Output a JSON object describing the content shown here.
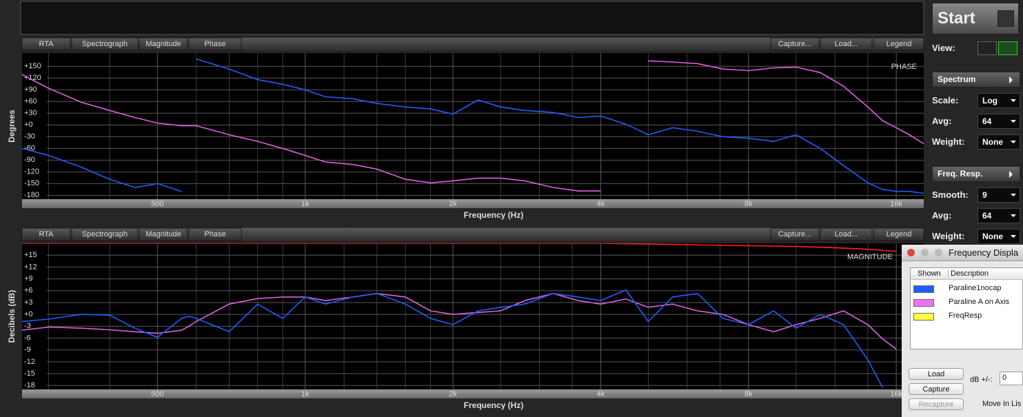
{
  "chart_data": [
    {
      "type": "line",
      "annotation": "PHASE",
      "x_label": "Frequency (Hz)",
      "y_label": "Degrees",
      "log_x": true,
      "grid": true,
      "xlim": [
        265,
        18200
      ],
      "xticks": [
        500,
        {
          "value": 1000,
          "label": "1k"
        },
        {
          "value": 2000,
          "label": "2k"
        },
        {
          "value": 4000,
          "label": "4k"
        },
        {
          "value": 8000,
          "label": "8k"
        },
        {
          "value": 16000,
          "label": "16k"
        }
      ],
      "x_minor_grid": [
        300,
        400,
        600,
        700,
        800,
        900,
        1200,
        1400,
        1600,
        1800,
        2500,
        3000,
        3500,
        5000,
        6000,
        7000,
        10000,
        12000,
        14000
      ],
      "ylim": [
        -190,
        184
      ],
      "yticks": [
        {
          "value": 150,
          "label": "+150"
        },
        {
          "value": 120,
          "label": "+120"
        },
        {
          "value": 90,
          "label": "+90"
        },
        {
          "value": 60,
          "label": "+60"
        },
        {
          "value": 30,
          "label": "+30"
        },
        {
          "value": 0,
          "label": "+0"
        },
        -30,
        -60,
        -90,
        -120,
        -150,
        -180
      ],
      "x": [
        265,
        300,
        350,
        400,
        450,
        500,
        560,
        580,
        600,
        700,
        800,
        900,
        1000,
        1100,
        1250,
        1400,
        1600,
        1800,
        2000,
        2250,
        2500,
        2800,
        3200,
        3600,
        4000,
        4500,
        5000,
        5600,
        6300,
        7100,
        8000,
        9000,
        10000,
        11200,
        12500,
        14000,
        15000,
        16000,
        17000,
        18200
      ],
      "series": [
        {
          "color": "#e060e0",
          "values": [
            129,
            94,
            58,
            37,
            19,
            5,
            -2,
            -2,
            -2,
            -25,
            -42,
            -60,
            -78,
            -95,
            -101,
            -113,
            -139,
            -148,
            -143,
            -136,
            -136,
            -143,
            -160,
            -169,
            -169,
            null,
            164,
            161,
            157,
            143,
            139,
            146,
            148,
            134,
            99,
            46,
            11,
            -7,
            -25,
            -48
          ]
        },
        {
          "color": "#1f5fff",
          "values": [
            -60,
            -78,
            -108,
            -139,
            -160,
            -150,
            -170,
            null,
            169,
            143,
            116,
            104,
            90,
            72,
            67,
            55,
            46,
            41,
            28,
            64,
            46,
            37,
            32,
            19,
            23,
            2,
            -25,
            -7,
            -16,
            -30,
            -34,
            -42,
            -25,
            -60,
            -104,
            -148,
            -165,
            -170,
            -170,
            -175
          ]
        }
      ]
    },
    {
      "type": "line",
      "annotation": "MAGNITUDE",
      "x_label": "Frequency (Hz)",
      "y_label": "Decibels (dB)",
      "log_x": true,
      "grid": true,
      "xlim": [
        265,
        18200
      ],
      "xticks": [
        500,
        {
          "value": 1000,
          "label": "1k"
        },
        {
          "value": 2000,
          "label": "2k"
        },
        {
          "value": 4000,
          "label": "4k"
        },
        {
          "value": 8000,
          "label": "8k"
        },
        {
          "value": 16000,
          "label": "16k"
        }
      ],
      "x_minor_grid": [
        300,
        400,
        600,
        700,
        800,
        900,
        1200,
        1400,
        1600,
        1800,
        2500,
        3000,
        3500,
        5000,
        6000,
        7000,
        10000,
        12000,
        14000
      ],
      "ylim": [
        -19,
        18
      ],
      "yticks": [
        {
          "value": 15,
          "label": "+15"
        },
        {
          "value": 12,
          "label": "+12"
        },
        {
          "value": 9,
          "label": "+9"
        },
        {
          "value": 6,
          "label": "+6"
        },
        {
          "value": 3,
          "label": "+3"
        },
        {
          "value": 0,
          "label": "+0"
        },
        -3,
        -6,
        -9,
        -12,
        -15,
        -18
      ],
      "x": [
        265,
        300,
        350,
        400,
        450,
        500,
        560,
        580,
        600,
        700,
        800,
        900,
        1000,
        1100,
        1250,
        1400,
        1600,
        1800,
        2000,
        2250,
        2500,
        2800,
        3200,
        3600,
        4000,
        4500,
        5000,
        5600,
        6300,
        7100,
        8000,
        9000,
        10000,
        11200,
        12500,
        14000,
        15000,
        16000,
        17000,
        18200
      ],
      "series": [
        {
          "color": "#ff2020",
          "values": [
            18,
            18,
            18,
            18,
            18,
            18,
            18,
            18,
            18,
            18,
            18,
            18,
            18,
            18,
            18,
            18,
            18,
            18,
            18,
            18,
            18,
            18,
            18,
            18,
            18,
            17.9,
            17.8,
            17.7,
            17.6,
            17.5,
            17.4,
            17.3,
            17.2,
            17,
            16.8,
            16.5,
            16.2,
            16,
            null,
            null
          ]
        },
        {
          "color": "#e060e0",
          "values": [
            -4,
            -3.2,
            -3.5,
            -3.9,
            -4.4,
            -4.8,
            -4,
            -3,
            -1.8,
            2.6,
            4,
            4.4,
            4.4,
            3.5,
            4.4,
            5.3,
            4.4,
            0.9,
            0,
            0.5,
            0.9,
            3.5,
            5.3,
            3.5,
            2.6,
            3.9,
            1.8,
            2.6,
            0.9,
            0,
            -2.6,
            -4.4,
            -2.6,
            -1,
            0.9,
            -2.6,
            -6.2,
            -8.8,
            null,
            null
          ]
        },
        {
          "color": "#1f5fff",
          "values": [
            -1.8,
            -1.2,
            0,
            -0.2,
            -3.5,
            -5.8,
            -1,
            -0.5,
            -1,
            -4.4,
            2.6,
            -1,
            4.4,
            2.6,
            4.4,
            5.3,
            2.6,
            -1,
            -2.6,
            0.9,
            1.8,
            2.6,
            5.3,
            4.4,
            3.5,
            6.2,
            -1.8,
            4.4,
            5.3,
            -1,
            -2.6,
            0.9,
            -3.5,
            0,
            -2.6,
            -11.5,
            -18.5,
            null,
            null,
            null
          ]
        }
      ]
    }
  ],
  "panels": [
    {
      "tabs": [
        {
          "label": "RTA"
        },
        {
          "label": "Spectrograph"
        },
        {
          "label": "Magnitude"
        },
        {
          "label": "Phase",
          "active": true
        }
      ],
      "buttons": [
        {
          "label": "Capture...",
          "disabled": true
        },
        {
          "label": "Load..."
        },
        {
          "label": "Legend"
        }
      ]
    },
    {
      "tabs": [
        {
          "label": "RTA"
        },
        {
          "label": "Spectrograph"
        },
        {
          "label": "Magnitude",
          "active": true
        },
        {
          "label": "Phase"
        }
      ],
      "buttons": [
        {
          "label": "Capture...",
          "disabled": true
        },
        {
          "label": "Load..."
        },
        {
          "label": "Legend"
        }
      ]
    }
  ],
  "sidebar": {
    "start": "Start",
    "view_label": "View:",
    "sections": [
      {
        "title": "Spectrum",
        "rows": [
          {
            "label": "Scale:",
            "value": "Log"
          },
          {
            "label": "Avg:",
            "value": "64"
          },
          {
            "label": "Weight:",
            "value": "None"
          }
        ]
      },
      {
        "title": "Freq. Resp.",
        "rows": [
          {
            "label": "Smooth:",
            "value": "9"
          },
          {
            "label": "Avg:",
            "value": "64"
          },
          {
            "label": "Weight:",
            "value": "None"
          }
        ]
      }
    ]
  },
  "legend_window": {
    "title": "Frequency Displa",
    "columns": [
      "Shown",
      "Description"
    ],
    "rows": [
      {
        "color": "#1f5fff",
        "description": "Paraline1nocap"
      },
      {
        "color": "#f070f0",
        "description": "Paraline A on Axis"
      },
      {
        "color": "#ffff40",
        "description": "FreqResp"
      }
    ],
    "buttons": [
      {
        "label": "Load"
      },
      {
        "label": "Capture"
      },
      {
        "label": "Recapture",
        "disabled": true
      }
    ],
    "db_label": "dB +/-:",
    "db_value": "0",
    "move_label": "Move In Lis"
  }
}
